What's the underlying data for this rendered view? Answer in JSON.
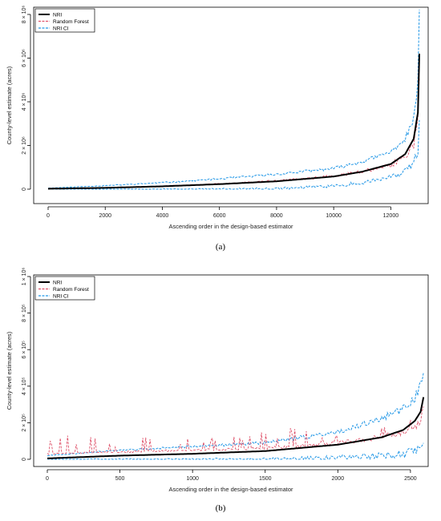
{
  "chart_data": [
    {
      "type": "line",
      "panel_label": "(a)",
      "xlabel": "Ascending order in the design-based estimator",
      "ylabel": "County-level estimate (acres)",
      "xlim": [
        0,
        13000
      ],
      "ylim": [
        0,
        8000000
      ],
      "x_ticks": [
        0,
        2000,
        4000,
        6000,
        8000,
        10000,
        12000
      ],
      "x_tick_labels": [
        "0",
        "2000",
        "4000",
        "6000",
        "8000",
        "10000",
        "12000"
      ],
      "y_ticks": [
        0,
        2000000,
        4000000,
        6000000,
        8000000
      ],
      "y_tick_labels": [
        "0",
        "2 × 10⁶",
        "4 × 10⁶",
        "6 × 10⁶",
        "8 × 10⁶"
      ],
      "legend_position": "top-left",
      "n_points": 13000,
      "series": [
        {
          "name": "NRI",
          "color": "#000000",
          "style": "solid",
          "x": [
            0,
            2000,
            4000,
            6000,
            8000,
            10000,
            11000,
            12000,
            12500,
            12800,
            12950,
            13000
          ],
          "values": [
            20000,
            60000,
            130000,
            230000,
            360000,
            580000,
            800000,
            1150000,
            1600000,
            2300000,
            3500000,
            6200000
          ]
        },
        {
          "name": "Random Forest",
          "color": "#df536b",
          "style": "dashed",
          "x": [
            0,
            2000,
            4000,
            6000,
            8000,
            10000,
            11000,
            12000,
            12500,
            12800,
            12950,
            13000
          ],
          "values": [
            20000,
            70000,
            140000,
            240000,
            380000,
            600000,
            800000,
            1100000,
            1500000,
            2100000,
            3000000,
            5000000
          ]
        },
        {
          "name": "NRI CI",
          "color": "#2297e6",
          "style": "dashed",
          "x": [
            0,
            2000,
            4000,
            6000,
            8000,
            10000,
            11000,
            12000,
            12500,
            12800,
            12950,
            13000
          ],
          "upper": [
            50000,
            160000,
            300000,
            470000,
            680000,
            950000,
            1250000,
            1700000,
            2300000,
            3200000,
            4800000,
            7900000
          ],
          "lower": [
            0,
            0,
            0,
            0,
            20000,
            150000,
            300000,
            550000,
            800000,
            1200000,
            1800000,
            3200000
          ]
        }
      ]
    },
    {
      "type": "line",
      "panel_label": "(b)",
      "xlabel": "Ascending order in the design-based estimator",
      "ylabel": "County-level estimate (acres)",
      "xlim": [
        0,
        2600
      ],
      "ylim": [
        0,
        1000000
      ],
      "x_ticks": [
        0,
        500,
        1000,
        1500,
        2000,
        2500
      ],
      "x_tick_labels": [
        "0",
        "500",
        "1000",
        "1500",
        "2000",
        "2500"
      ],
      "y_ticks": [
        0,
        200000,
        400000,
        600000,
        800000,
        1000000
      ],
      "y_tick_labels": [
        "0",
        "2 × 10⁵",
        "4 × 10⁵",
        "6 × 10⁵",
        "8 × 10⁵",
        "1 × 10⁶"
      ],
      "legend_position": "top-left",
      "n_points": 2600,
      "series": [
        {
          "name": "NRI",
          "color": "#000000",
          "style": "solid",
          "x": [
            0,
            500,
            1000,
            1500,
            2000,
            2300,
            2450,
            2530,
            2570,
            2590
          ],
          "values": [
            5000,
            20000,
            30000,
            45000,
            80000,
            120000,
            160000,
            210000,
            260000,
            340000
          ]
        },
        {
          "name": "Random Forest",
          "color": "#df536b",
          "style": "dashed",
          "x": [
            0,
            500,
            1000,
            1500,
            2000,
            2300,
            2450,
            2530,
            2570,
            2590
          ],
          "values": [
            30000,
            40000,
            50000,
            60000,
            90000,
            120000,
            150000,
            180000,
            220000,
            280000
          ],
          "spike_max": [
            140000,
            110000,
            150000,
            190000,
            160000,
            180000,
            200000,
            230000,
            270000,
            300000
          ]
        },
        {
          "name": "NRI CI",
          "color": "#2297e6",
          "style": "dashed",
          "x": [
            0,
            500,
            1000,
            1500,
            2000,
            2300,
            2450,
            2530,
            2570,
            2590
          ],
          "upper": [
            20000,
            50000,
            70000,
            90000,
            150000,
            220000,
            280000,
            340000,
            400000,
            470000
          ],
          "lower": [
            0,
            0,
            0,
            0,
            10000,
            20000,
            30000,
            40000,
            60000,
            100000
          ]
        }
      ]
    }
  ]
}
